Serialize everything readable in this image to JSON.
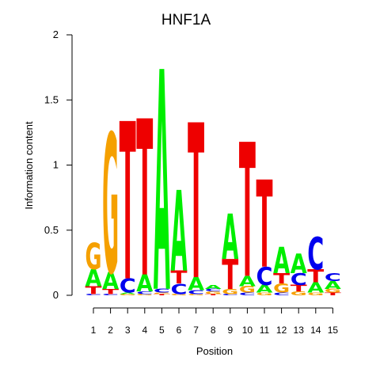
{
  "chart_data": {
    "type": "sequence-logo",
    "title": "HNF1A",
    "xlabel": "Position",
    "ylabel": "Information content",
    "ylim": [
      0,
      2
    ],
    "yticks": [
      "0",
      "0.5",
      "1",
      "1.5",
      "2"
    ],
    "positions": [
      "1",
      "2",
      "3",
      "4",
      "5",
      "6",
      "7",
      "8",
      "9",
      "10",
      "11",
      "12",
      "13",
      "14",
      "15"
    ],
    "colors": {
      "A": "#00ee00",
      "C": "#0000ee",
      "G": "#f5a000",
      "T": "#ee0000"
    },
    "stacks": [
      [
        {
          "l": "C",
          "h": 0.01
        },
        {
          "l": "T",
          "h": 0.06
        },
        {
          "l": "A",
          "h": 0.13
        },
        {
          "l": "G",
          "h": 0.2
        }
      ],
      [
        {
          "l": "C",
          "h": 0.01
        },
        {
          "l": "T",
          "h": 0.04
        },
        {
          "l": "A",
          "h": 0.13
        },
        {
          "l": "G",
          "h": 1.07
        }
      ],
      [
        {
          "l": "G",
          "h": 0.01
        },
        {
          "l": "A",
          "h": 0.01
        },
        {
          "l": "C",
          "h": 0.11
        },
        {
          "l": "T",
          "h": 1.21
        }
      ],
      [
        {
          "l": "G",
          "h": 0.01
        },
        {
          "l": "C",
          "h": 0.02
        },
        {
          "l": "A",
          "h": 0.13
        },
        {
          "l": "T",
          "h": 1.2
        }
      ],
      [
        {
          "l": "T",
          "h": 0.01
        },
        {
          "l": "G",
          "h": 0.01
        },
        {
          "l": "C",
          "h": 0.03
        },
        {
          "l": "A",
          "h": 1.69
        }
      ],
      [
        {
          "l": "G",
          "h": 0.01
        },
        {
          "l": "C",
          "h": 0.08
        },
        {
          "l": "T",
          "h": 0.1
        },
        {
          "l": "A",
          "h": 0.62
        }
      ],
      [
        {
          "l": "G",
          "h": 0.01
        },
        {
          "l": "C",
          "h": 0.03
        },
        {
          "l": "A",
          "h": 0.1
        },
        {
          "l": "T",
          "h": 1.19
        }
      ],
      [
        {
          "l": "T",
          "h": 0.01
        },
        {
          "l": "G",
          "h": 0.02
        },
        {
          "l": "C",
          "h": 0.02
        },
        {
          "l": "A",
          "h": 0.03
        }
      ],
      [
        {
          "l": "C",
          "h": 0.01
        },
        {
          "l": "G",
          "h": 0.04
        },
        {
          "l": "T",
          "h": 0.23
        },
        {
          "l": "A",
          "h": 0.35
        }
      ],
      [
        {
          "l": "C",
          "h": 0.02
        },
        {
          "l": "G",
          "h": 0.05
        },
        {
          "l": "A",
          "h": 0.08
        },
        {
          "l": "T",
          "h": 1.03
        }
      ],
      [
        {
          "l": "G",
          "h": 0.02
        },
        {
          "l": "A",
          "h": 0.06
        },
        {
          "l": "C",
          "h": 0.14
        },
        {
          "l": "T",
          "h": 0.67
        }
      ],
      [
        {
          "l": "C",
          "h": 0.02
        },
        {
          "l": "G",
          "h": 0.07
        },
        {
          "l": "T",
          "h": 0.08
        },
        {
          "l": "A",
          "h": 0.2
        }
      ],
      [
        {
          "l": "G",
          "h": 0.03
        },
        {
          "l": "T",
          "h": 0.05
        },
        {
          "l": "C",
          "h": 0.09
        },
        {
          "l": "A",
          "h": 0.15
        }
      ],
      [
        {
          "l": "G",
          "h": 0.02
        },
        {
          "l": "A",
          "h": 0.08
        },
        {
          "l": "T",
          "h": 0.1
        },
        {
          "l": "C",
          "h": 0.25
        }
      ],
      [
        {
          "l": "T",
          "h": 0.02
        },
        {
          "l": "G",
          "h": 0.03
        },
        {
          "l": "A",
          "h": 0.06
        },
        {
          "l": "C",
          "h": 0.06
        }
      ]
    ]
  }
}
